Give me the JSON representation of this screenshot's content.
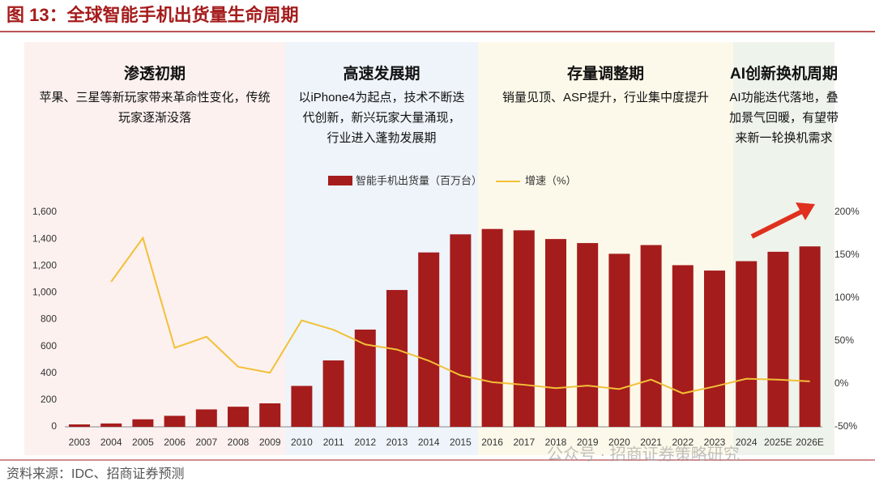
{
  "chart_data": {
    "type": "bar",
    "title": "图 13：全球智能手机出货量生命周期",
    "source": "资料来源：IDC、招商证券预测",
    "watermark": "公众号 · 招商证券策略研究",
    "phases": [
      {
        "title": "渗透初期",
        "lines": [
          "苹果、三星等新玩家带来革命性变化，传统",
          "玩家逐渐没落"
        ]
      },
      {
        "title": "高速发展期",
        "lines": [
          "以iPhone4为起点，技术不断迭",
          "代创新，新兴玩家大量涌现，",
          "行业进入蓬勃发展期"
        ]
      },
      {
        "title": "存量调整期",
        "lines": [
          "销量见顶、ASP提升，行业集中度提升"
        ]
      },
      {
        "title": "AI创新换机周期",
        "lines": [
          "AI功能迭代落地，叠",
          "加景气回暖，有望带",
          "来新一轮换机需求"
        ]
      }
    ],
    "categories": [
      "2003",
      "2004",
      "2005",
      "2006",
      "2007",
      "2008",
      "2009",
      "2010",
      "2011",
      "2012",
      "2013",
      "2014",
      "2015",
      "2016",
      "2017",
      "2018",
      "2019",
      "2020",
      "2021",
      "2022",
      "2023",
      "2024",
      "2025E",
      "2026E"
    ],
    "series": [
      {
        "name": "智能手机出货量（百万台）",
        "color": "#a51c1c",
        "values": [
          18,
          25,
          56,
          82,
          130,
          150,
          175,
          305,
          495,
          725,
          1020,
          1300,
          1435,
          1475,
          1465,
          1400,
          1370,
          1290,
          1355,
          1205,
          1165,
          1235,
          1305,
          1345
        ]
      },
      {
        "name": "增速（%）",
        "color": "#f2c037",
        "axis": "y2",
        "values": [
          null,
          119,
          170,
          42,
          55,
          20,
          13,
          74,
          63,
          46,
          40,
          27,
          10,
          2,
          -1,
          -5,
          -2,
          -6,
          5,
          -11,
          -3,
          6,
          5,
          3
        ]
      }
    ],
    "ylim": [
      0,
      1600
    ],
    "yticks": [
      0,
      200,
      400,
      600,
      800,
      {
        "value": 1000,
        "label": "1,000"
      },
      {
        "value": 1200,
        "label": "1,200"
      },
      {
        "value": 1400,
        "label": "1,400"
      },
      {
        "value": 1600,
        "label": "1,600"
      }
    ],
    "y2lim": [
      -50,
      200
    ],
    "y2ticks": [
      {
        "value": -50,
        "label": "-50%"
      },
      {
        "value": 0,
        "label": "0%"
      },
      {
        "value": 50,
        "label": "50%"
      },
      {
        "value": 100,
        "label": "100%"
      },
      {
        "value": 150,
        "label": "150%"
      },
      {
        "value": 200,
        "label": "200%"
      }
    ]
  }
}
